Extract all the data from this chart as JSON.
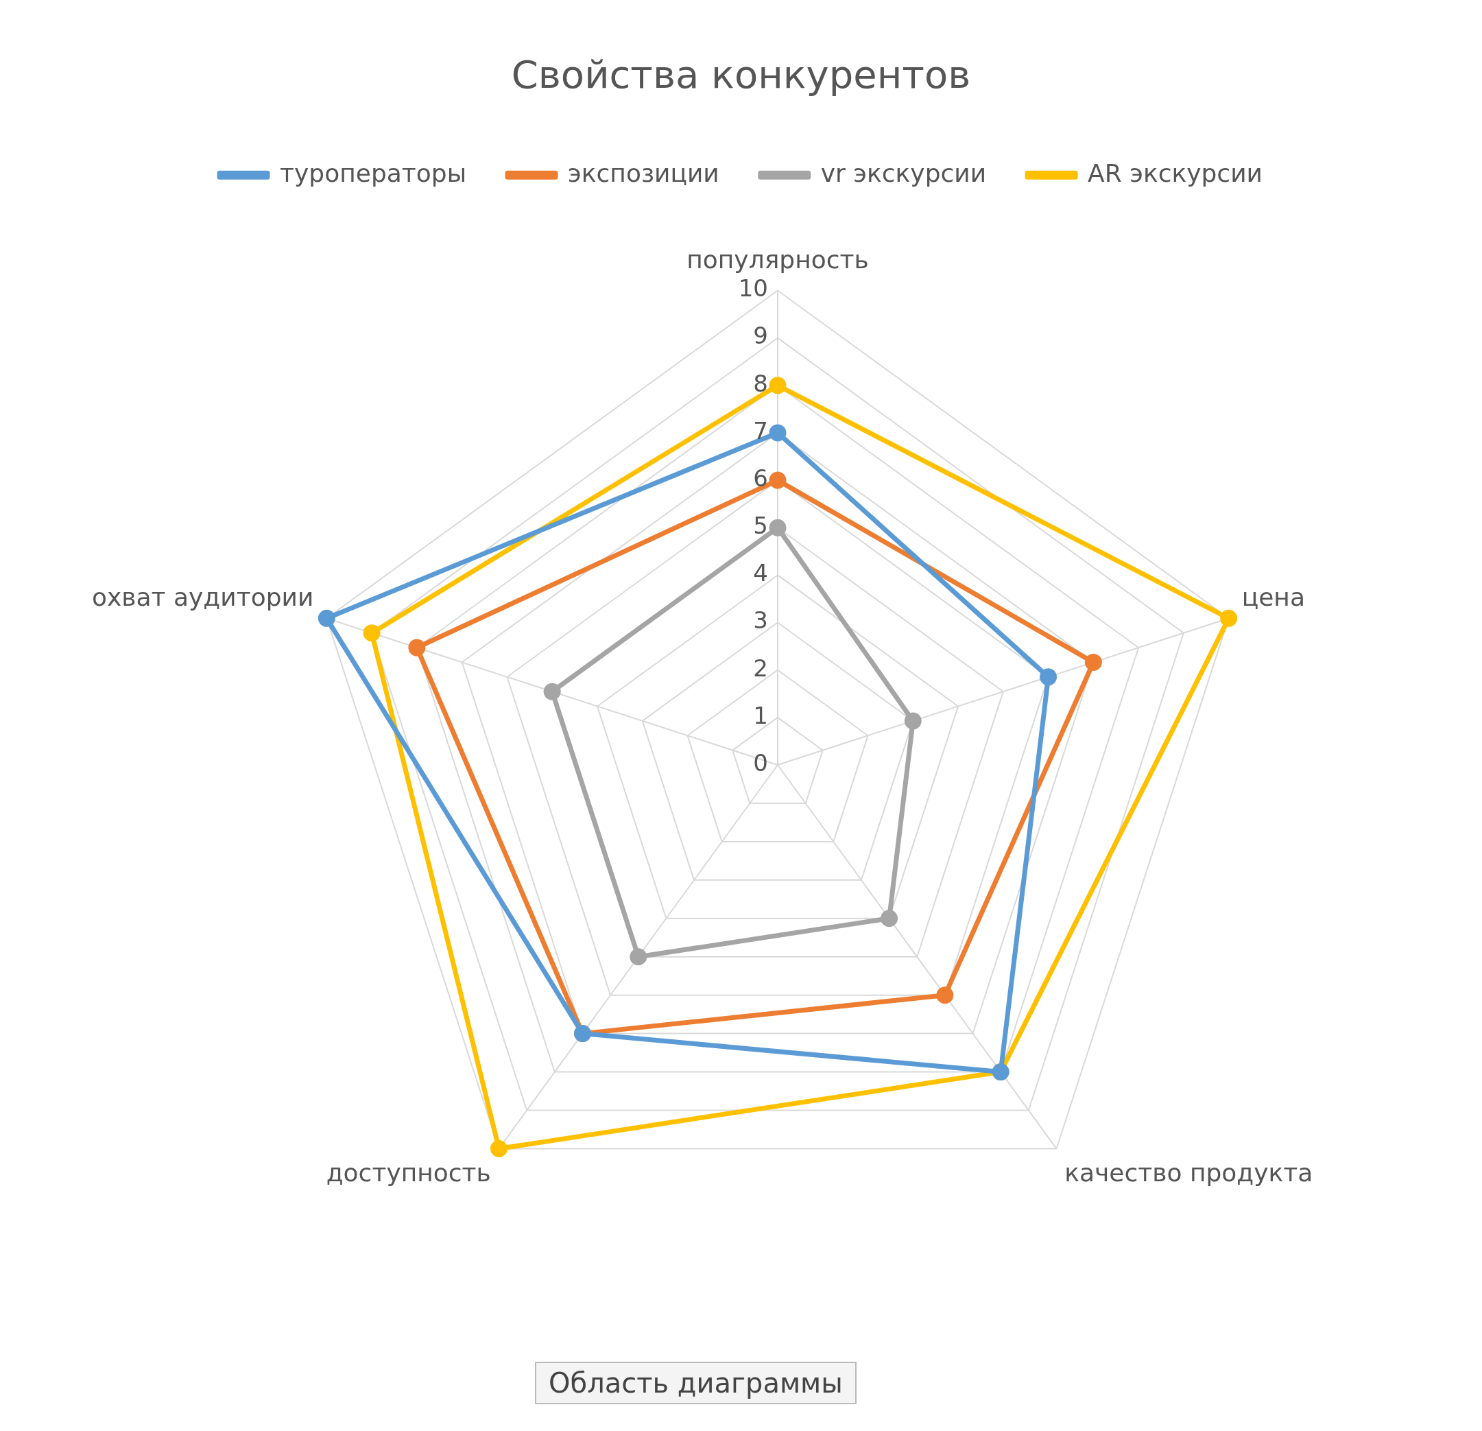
{
  "chart_data": {
    "type": "radar",
    "title": "Свойства конкурентов",
    "categories": [
      "популярность",
      "цена",
      "качество продукта",
      "доступность",
      "охват аудитории"
    ],
    "series": [
      {
        "name": "туроператоры",
        "color": "#5b9bd5",
        "values": [
          7,
          6,
          8,
          7,
          10
        ]
      },
      {
        "name": "экспозиции",
        "color": "#ed7d31",
        "values": [
          6,
          7,
          6,
          7,
          8
        ]
      },
      {
        "name": "vr экскурсии",
        "color": "#a5a5a5",
        "values": [
          5,
          3,
          4,
          5,
          5
        ]
      },
      {
        "name": "AR экскурсии",
        "color": "#ffc000",
        "values": [
          8,
          10,
          8,
          10,
          9
        ]
      }
    ],
    "ylim": [
      0,
      10
    ],
    "yticks": [
      0,
      1,
      2,
      3,
      4,
      5,
      6,
      7,
      8,
      9,
      10
    ],
    "grid": true,
    "legend": "top",
    "marker": "circle",
    "annotations": [
      "Область диаграммы"
    ]
  }
}
